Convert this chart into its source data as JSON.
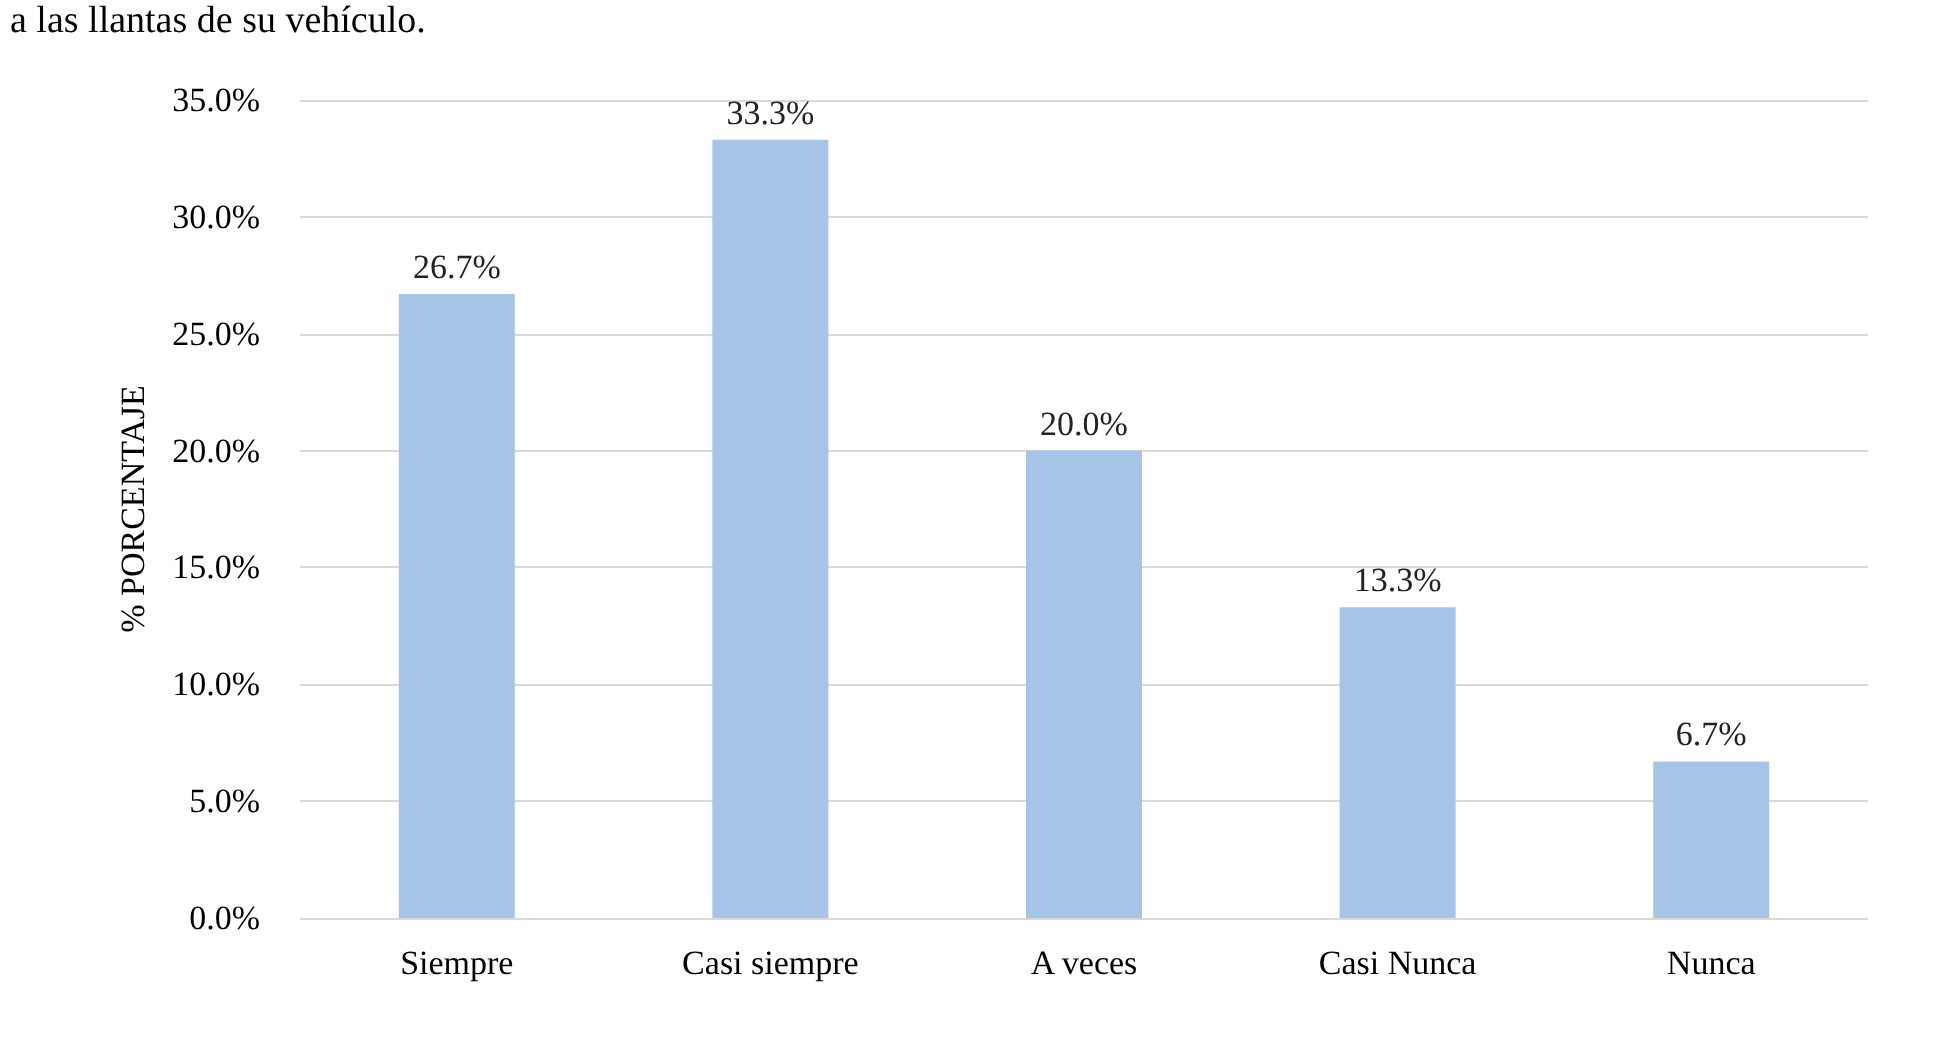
{
  "chart_data": {
    "type": "bar",
    "title": "a las llantas de su vehículo.",
    "ylabel": "% PORCENTAJE",
    "categories": [
      "Siempre",
      "Casi siempre",
      "A veces",
      "Casi Nunca",
      "Nunca"
    ],
    "values": [
      26.7,
      33.3,
      20.0,
      13.3,
      6.7
    ],
    "value_labels": [
      "26.7%",
      "33.3%",
      "20.0%",
      "13.3%",
      "6.7%"
    ],
    "color": "#a6c4e8",
    "ylim": [
      0,
      35
    ],
    "yticks": [
      {
        "value": 0,
        "label": "0.0%"
      },
      {
        "value": 5,
        "label": "5.0%"
      },
      {
        "value": 10,
        "label": "10.0%"
      },
      {
        "value": 15,
        "label": "15.0%"
      },
      {
        "value": 20,
        "label": "20.0%"
      },
      {
        "value": 25,
        "label": "25.0%"
      },
      {
        "value": 30,
        "label": "30.0%"
      },
      {
        "value": 35,
        "label": "35.0%"
      }
    ],
    "grid": "y"
  }
}
